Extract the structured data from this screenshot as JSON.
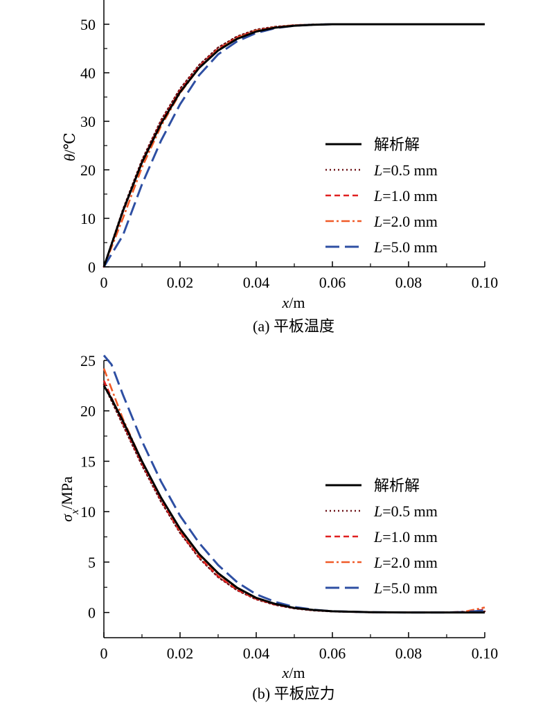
{
  "colors": {
    "analytic": "#000000",
    "L05": "#6b0f14",
    "L10": "#e02020",
    "L20": "#f05a28",
    "L50": "#2e4fa3"
  },
  "chart_data": [
    {
      "type": "line",
      "caption": "(a) 平板温度",
      "xlabel_var": "x",
      "xlabel_unit": "/m",
      "ylabel_var": "θ",
      "ylabel_unit": "/℃",
      "xlim": [
        0,
        0.1
      ],
      "ylim": [
        0,
        55
      ],
      "xticks": [
        "0",
        "0.02",
        "0.04",
        "0.06",
        "0.08",
        "0.10"
      ],
      "yticks": [
        "0",
        "10",
        "20",
        "30",
        "40",
        "50"
      ],
      "x": [
        0,
        0.005,
        0.01,
        0.015,
        0.02,
        0.025,
        0.03,
        0.035,
        0.04,
        0.045,
        0.05,
        0.055,
        0.06,
        0.07,
        0.08,
        0.09,
        0.1
      ],
      "legend": [
        {
          "var": "",
          "text": "解析解"
        },
        {
          "var": "L",
          "text": "=0.5 mm"
        },
        {
          "var": "L",
          "text": "=1.0 mm"
        },
        {
          "var": "L",
          "text": "=2.0 mm"
        },
        {
          "var": "L",
          "text": "=5.0 mm"
        }
      ],
      "series": [
        {
          "key": "analytic",
          "style": "solid",
          "values": [
            0,
            11.5,
            21.5,
            29.5,
            36.0,
            41.0,
            44.6,
            47.0,
            48.5,
            49.3,
            49.7,
            49.9,
            50.0,
            50.0,
            50.0,
            50.0,
            50.0
          ]
        },
        {
          "key": "L05",
          "style": "dotted",
          "values": [
            0,
            11.8,
            22.0,
            30.2,
            36.7,
            41.6,
            45.2,
            47.5,
            48.9,
            49.5,
            49.8,
            49.95,
            50.0,
            50.0,
            50.0,
            50.0,
            50.0
          ]
        },
        {
          "key": "L10",
          "style": "dashed",
          "values": [
            0,
            11.3,
            21.6,
            29.8,
            36.3,
            41.3,
            44.9,
            47.3,
            48.7,
            49.4,
            49.8,
            49.9,
            50.0,
            50.0,
            50.0,
            50.0,
            50.0
          ]
        },
        {
          "key": "L20",
          "style": "dashdot",
          "values": [
            0,
            10.0,
            20.5,
            29.0,
            35.8,
            41.0,
            44.8,
            47.2,
            48.7,
            49.4,
            49.8,
            49.9,
            50.0,
            50.0,
            50.0,
            50.0,
            50.0
          ]
        },
        {
          "key": "L50",
          "style": "longdash",
          "values": [
            0,
            6.5,
            17.0,
            26.0,
            33.5,
            39.5,
            43.8,
            46.5,
            48.2,
            49.2,
            49.7,
            49.9,
            50.0,
            50.0,
            50.0,
            50.0,
            50.0
          ]
        }
      ]
    },
    {
      "type": "line",
      "caption": "(b) 平板应力",
      "xlabel_var": "x",
      "xlabel_unit": "/m",
      "ylabel_var": "σ",
      "ylabel_sub": "x",
      "ylabel_unit": "/MPa",
      "xlim": [
        0,
        0.1
      ],
      "ylim": [
        -2.5,
        25
      ],
      "xticks": [
        "0",
        "0.02",
        "0.04",
        "0.06",
        "0.08",
        "0.10"
      ],
      "yticks": [
        "0",
        "5",
        "10",
        "15",
        "20",
        "25"
      ],
      "x": [
        0,
        0.002,
        0.005,
        0.01,
        0.015,
        0.02,
        0.025,
        0.03,
        0.035,
        0.04,
        0.045,
        0.05,
        0.055,
        0.06,
        0.07,
        0.08,
        0.09,
        0.095,
        0.1
      ],
      "legend": [
        {
          "var": "",
          "text": "解析解"
        },
        {
          "var": "L",
          "text": "=0.5 mm"
        },
        {
          "var": "L",
          "text": "=1.0 mm"
        },
        {
          "var": "L",
          "text": "=2.0 mm"
        },
        {
          "var": "L",
          "text": "=5.0 mm"
        }
      ],
      "series": [
        {
          "key": "analytic",
          "style": "solid",
          "values": [
            22.5,
            21.2,
            19.0,
            15.0,
            11.4,
            8.3,
            5.8,
            3.9,
            2.45,
            1.45,
            0.85,
            0.45,
            0.25,
            0.12,
            0.03,
            0.0,
            0.0,
            0.0,
            0.0
          ]
        },
        {
          "key": "L05",
          "style": "dotted",
          "values": [
            22.6,
            21.0,
            18.6,
            14.6,
            11.0,
            7.9,
            5.4,
            3.5,
            2.2,
            1.3,
            0.75,
            0.4,
            0.2,
            0.1,
            0.02,
            0.0,
            0.0,
            0.0,
            0.1
          ]
        },
        {
          "key": "L10",
          "style": "dashed",
          "values": [
            23.0,
            21.3,
            18.8,
            14.8,
            11.2,
            8.0,
            5.5,
            3.6,
            2.25,
            1.35,
            0.78,
            0.42,
            0.22,
            0.11,
            0.02,
            0.0,
            0.0,
            0.05,
            0.3
          ]
        },
        {
          "key": "L20",
          "style": "dashdot",
          "values": [
            24.2,
            22.2,
            19.2,
            15.0,
            11.4,
            8.2,
            5.7,
            3.8,
            2.4,
            1.4,
            0.85,
            0.45,
            0.25,
            0.12,
            0.03,
            0.0,
            0.0,
            0.1,
            0.5
          ]
        },
        {
          "key": "L50",
          "style": "longdash",
          "values": [
            25.5,
            24.6,
            21.6,
            17.0,
            13.0,
            9.6,
            6.9,
            4.7,
            3.0,
            1.8,
            1.05,
            0.55,
            0.28,
            0.12,
            0.03,
            0.0,
            0.0,
            0.05,
            0.2
          ]
        }
      ]
    }
  ]
}
